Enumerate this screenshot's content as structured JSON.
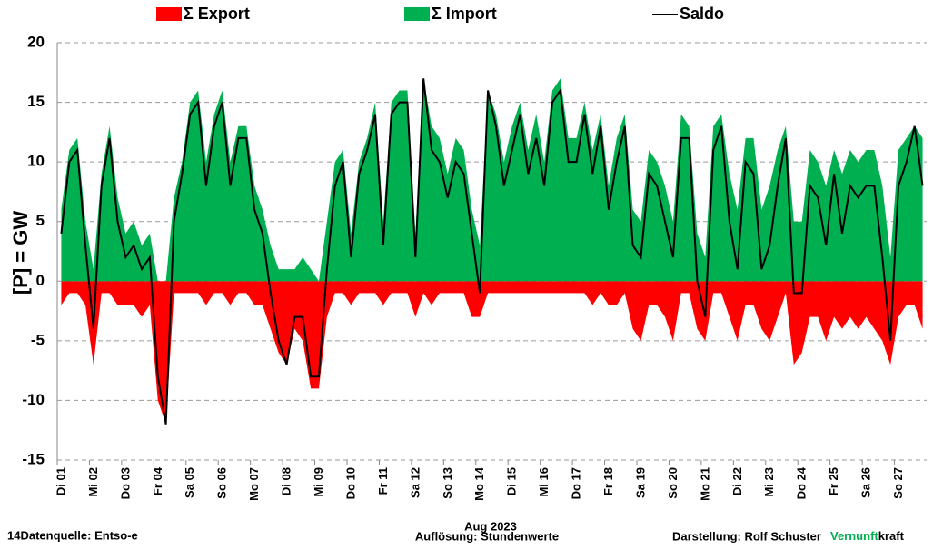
{
  "chart_data": {
    "type": "area",
    "x_label": "Aug 2023",
    "y_label": "[P]  = GW",
    "ylim": [
      -15,
      20
    ],
    "yticks": [
      -15,
      -10,
      -5,
      0,
      5,
      10,
      15,
      20
    ],
    "grid": true,
    "categories": [
      "Di 01",
      null,
      null,
      null,
      "Mi 02",
      null,
      null,
      null,
      "Do 03",
      null,
      null,
      null,
      "Fr 04",
      null,
      null,
      null,
      "Sa 05",
      null,
      null,
      null,
      "So 06",
      null,
      null,
      null,
      "Mo 07",
      null,
      null,
      null,
      "Di 08",
      null,
      null,
      null,
      "Mi 09",
      null,
      null,
      null,
      "Do 10",
      null,
      null,
      null,
      "Fr 11",
      null,
      null,
      null,
      "Sa 12",
      null,
      null,
      null,
      "So 13",
      null,
      null,
      null,
      "Mo 14",
      null,
      null,
      null,
      "Di 15",
      null,
      null,
      null,
      "Mi 16",
      null,
      null,
      null,
      "Do 17",
      null,
      null,
      null,
      "Fr 18",
      null,
      null,
      null,
      "Sa 19",
      null,
      null,
      null,
      "So 20",
      null,
      null,
      null,
      "Mo 21",
      null,
      null,
      null,
      "Di 22",
      null,
      null,
      null,
      "Mi 23",
      null,
      null,
      null,
      "Do 24",
      null,
      null,
      null,
      "Fr 25",
      null,
      null,
      null,
      "Sa 26",
      null,
      null,
      null,
      "So 27",
      null,
      null,
      null
    ],
    "series": [
      {
        "name": "Σ Export",
        "color": "#ff0000",
        "style": "area",
        "values": [
          -2,
          -1,
          -1,
          -2,
          -7,
          -1,
          -1,
          -2,
          -2,
          -2,
          -3,
          -2,
          -10,
          -12,
          -1,
          -1,
          -1,
          -1,
          -2,
          -1,
          -1,
          -2,
          -1,
          -1,
          -2,
          -2,
          -4,
          -6,
          -7,
          -4,
          -5,
          -9,
          -9,
          -3,
          -1,
          -1,
          -2,
          -1,
          -1,
          -1,
          -2,
          -1,
          -1,
          -1,
          -3,
          -1,
          -2,
          -1,
          -1,
          -1,
          -1,
          -3,
          -3,
          -1,
          -1,
          -1,
          -1,
          -1,
          -1,
          -1,
          -1,
          -1,
          -1,
          -1,
          -1,
          -1,
          -2,
          -1,
          -2,
          -2,
          -1,
          -4,
          -5,
          -2,
          -2,
          -3,
          -5,
          -1,
          -1,
          -4,
          -5,
          -1,
          -1,
          -3,
          -5,
          -2,
          -2,
          -4,
          -5,
          -3,
          -1,
          -7,
          -6,
          -3,
          -3,
          -5,
          -3,
          -4,
          -3,
          -4,
          -3,
          -4,
          -5,
          -7,
          -3,
          -2,
          -2,
          -4
        ]
      },
      {
        "name": "Σ Import",
        "color": "#00b050",
        "style": "area",
        "values": [
          6,
          11,
          12,
          5,
          1,
          9,
          13,
          7,
          4,
          5,
          3,
          4,
          0,
          0,
          7,
          10,
          15,
          16,
          10,
          14,
          16,
          10,
          13,
          13,
          8,
          6,
          3,
          1,
          1,
          1,
          2,
          1,
          0,
          5,
          10,
          11,
          4,
          10,
          12,
          15,
          5,
          15,
          16,
          16,
          4,
          17,
          13,
          12,
          9,
          12,
          11,
          6,
          3,
          16,
          14,
          10,
          13,
          15,
          11,
          14,
          10,
          16,
          17,
          12,
          12,
          15,
          11,
          14,
          8,
          12,
          14,
          6,
          5,
          11,
          10,
          8,
          5,
          14,
          13,
          4,
          2,
          13,
          14,
          9,
          6,
          12,
          12,
          6,
          8,
          11,
          13,
          5,
          5,
          11,
          10,
          8,
          11,
          9,
          11,
          10,
          11,
          11,
          8,
          2,
          11,
          12,
          13,
          12
        ]
      },
      {
        "name": "Saldo",
        "color": "#000000",
        "style": "line",
        "values": [
          4,
          10,
          11,
          3,
          -4,
          8,
          12,
          5,
          2,
          3,
          1,
          2,
          -8,
          -12,
          5,
          9,
          14,
          15,
          8,
          13,
          15,
          8,
          12,
          12,
          6,
          4,
          -1,
          -5,
          -7,
          -3,
          -3,
          -8,
          -8,
          1,
          8,
          10,
          2,
          9,
          11,
          14,
          3,
          14,
          15,
          15,
          2,
          17,
          11,
          10,
          7,
          10,
          9,
          4,
          -1,
          16,
          13,
          8,
          11,
          14,
          9,
          12,
          8,
          15,
          16,
          10,
          10,
          14,
          9,
          13,
          6,
          10,
          13,
          3,
          2,
          9,
          8,
          5,
          2,
          12,
          12,
          0,
          -3,
          11,
          13,
          5,
          1,
          10,
          9,
          1,
          3,
          8,
          12,
          -1,
          -1,
          8,
          7,
          3,
          9,
          4,
          8,
          7,
          8,
          8,
          2,
          -5,
          8,
          10,
          13,
          8
        ]
      }
    ],
    "footer": {
      "source": "14Datenquelle: Entso-e",
      "resolution": "Auflösung: Stundenwerte",
      "author": "Darstellung:  Rolf Schuster",
      "brand_a": "Vernunft",
      "brand_b": "kraft"
    }
  }
}
